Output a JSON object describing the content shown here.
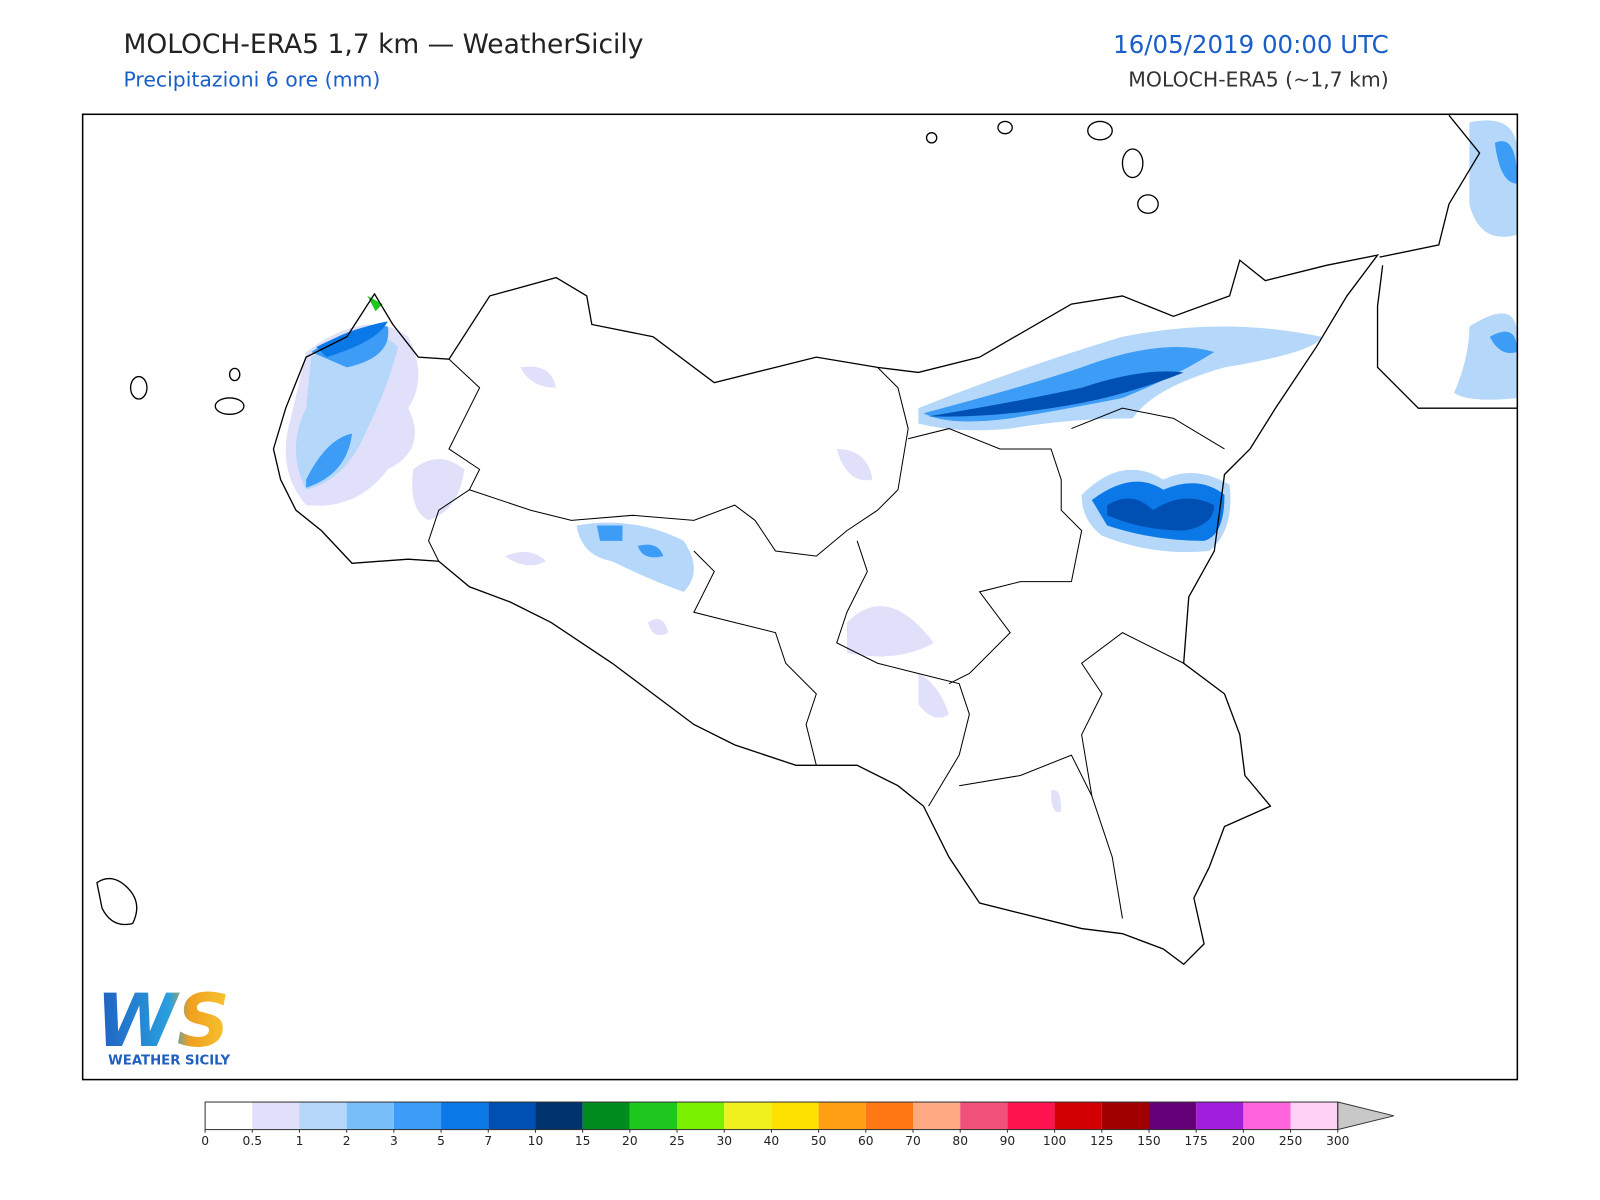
{
  "header": {
    "title": "MOLOCH-ERA5 1,7 km — WeatherSicily",
    "subtitle": "Precipitazioni 6 ore (mm)",
    "date": "16/05/2019 00:00 UTC",
    "model": "MOLOCH-ERA5 (~1,7 km)"
  },
  "legend": {
    "ticks": [
      0,
      0.5,
      1,
      2,
      3,
      5,
      7,
      10,
      15,
      20,
      25,
      30,
      40,
      50,
      60,
      70,
      80,
      90,
      100,
      125,
      150,
      175,
      200,
      250,
      300
    ],
    "colors": [
      "#ffffff",
      "#e0e0fa",
      "#b4d7fa",
      "#78bef8",
      "#3c9cf6",
      "#0a78e6",
      "#0050b4",
      "#00326e",
      "#008c1e",
      "#1ec81e",
      "#78f000",
      "#f0f01e",
      "#ffe100",
      "#ffa014",
      "#ff7814",
      "#ffaa82",
      "#f0507a",
      "#ff1450",
      "#d20000",
      "#a00000",
      "#640078",
      "#a01edc",
      "#ff64dc",
      "#ffd2f5"
    ],
    "over_color": "#c8c8c8"
  },
  "logo": {
    "letters": "WS",
    "name": "WEATHER SICILY"
  }
}
